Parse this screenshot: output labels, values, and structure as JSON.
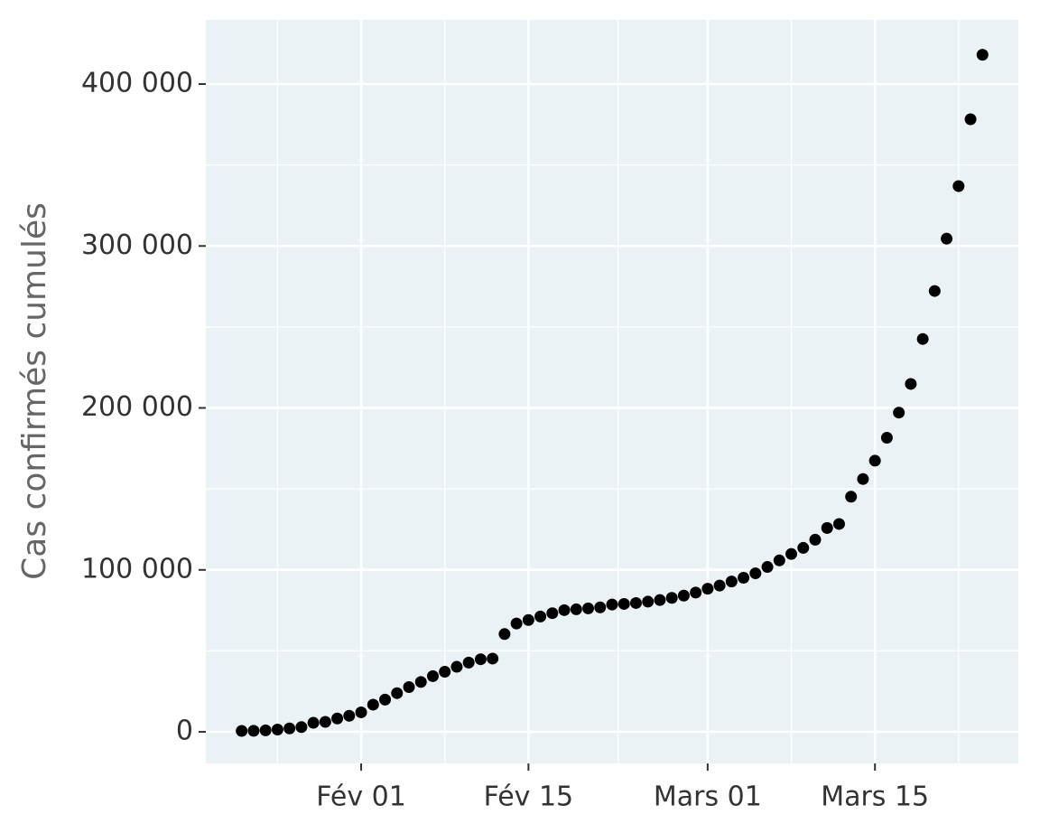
{
  "chart_data": {
    "type": "scatter",
    "y_label": "Cas confirmés cumulés",
    "x": [
      "01-22",
      "01-23",
      "01-24",
      "01-25",
      "01-26",
      "01-27",
      "01-28",
      "01-29",
      "01-30",
      "01-31",
      "02-01",
      "02-02",
      "02-03",
      "02-04",
      "02-05",
      "02-06",
      "02-07",
      "02-08",
      "02-09",
      "02-10",
      "02-11",
      "02-12",
      "02-13",
      "02-14",
      "02-15",
      "02-16",
      "02-17",
      "02-18",
      "02-19",
      "02-20",
      "02-21",
      "02-22",
      "02-23",
      "02-24",
      "02-25",
      "02-26",
      "02-27",
      "02-28",
      "02-29",
      "03-01",
      "03-02",
      "03-03",
      "03-04",
      "03-05",
      "03-06",
      "03-07",
      "03-08",
      "03-09",
      "03-10",
      "03-11",
      "03-12",
      "03-13",
      "03-14",
      "03-15",
      "03-16",
      "03-17",
      "03-18",
      "03-19",
      "03-20",
      "03-21",
      "03-22",
      "03-23",
      "03-24"
    ],
    "values": [
      555,
      654,
      941,
      1434,
      2118,
      2927,
      5578,
      6166,
      8234,
      9927,
      12038,
      16787,
      19887,
      23898,
      27643,
      30802,
      34395,
      37129,
      40160,
      42768,
      44810,
      45228,
      60381,
      66908,
      69052,
      71235,
      73270,
      75152,
      75652,
      76212,
      76841,
      78602,
      78982,
      79546,
      80399,
      81376,
      82737,
      84128,
      86011,
      88369,
      90306,
      92840,
      95120,
      97886,
      101801,
      105847,
      109821,
      113590,
      118620,
      125875,
      128352,
      145205,
      156101,
      167454,
      181574,
      197102,
      214821,
      242570,
      272208,
      304507,
      336953,
      378235,
      418045
    ],
    "color": "#000000",
    "xlim": [
      "01-19",
      "03-27"
    ],
    "xticks": [
      {
        "value": "02-01",
        "label": "Fév 01"
      },
      {
        "value": "02-15",
        "label": "Fév 15"
      },
      {
        "value": "03-01",
        "label": "Mars 01"
      },
      {
        "value": "03-15",
        "label": "Mars 15"
      }
    ],
    "ylim": [
      -19500,
      439600
    ],
    "yticks": [
      0,
      {
        "value": 100000,
        "label": "100 000"
      },
      {
        "value": 200000,
        "label": "200 000"
      },
      {
        "value": 300000,
        "label": "300 000"
      },
      {
        "value": 400000,
        "label": "400 000"
      }
    ],
    "grid": true
  }
}
